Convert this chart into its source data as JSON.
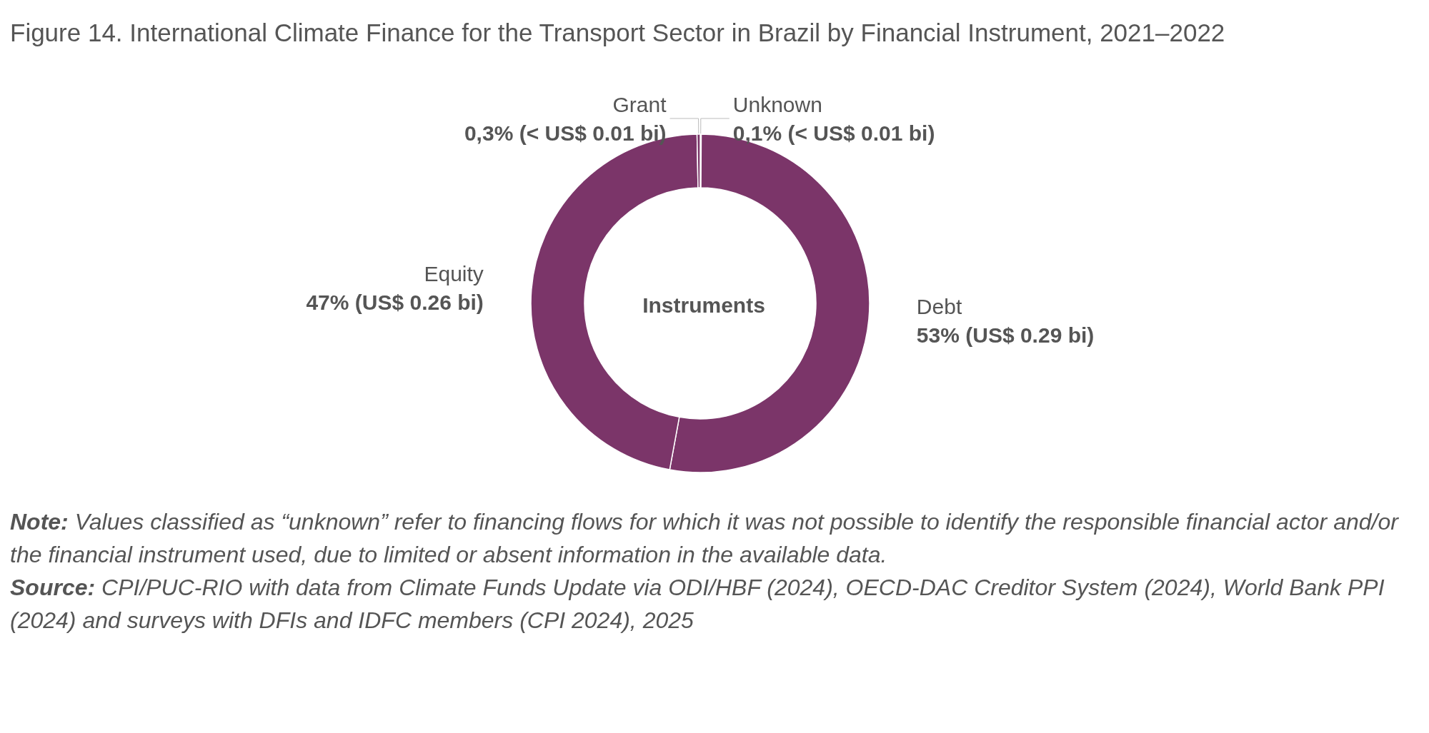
{
  "chart_data": {
    "type": "donut",
    "title": "Figure 14. International Climate Finance for the Transport Sector in Brazil by Financial Instrument, 2021–2022",
    "categories": [
      "Unknown",
      "Debt",
      "Equity",
      "Grant"
    ],
    "values": [
      0.1,
      53,
      47,
      0.3
    ],
    "colors": [
      "#7b3569",
      "#7b3569",
      "#7b3569",
      "#7b3569"
    ],
    "value_labels": [
      "0,1% (< US$ 0.01 bi)",
      "53% (US$ 0.29 bi)",
      "47% (US$ 0.26 bi)",
      "0,3% (< US$ 0.01 bi)"
    ],
    "legend_title": "Instruments",
    "legend": false,
    "annotations": [
      "Note: Values classified as “unknown” refer to financing flows for which it was not possible to identify the responsible financial actor and/or the financial instrument used, due to limited or absent information in the available data.",
      "Source: CPI/PUC-RIO with data from Climate Funds Update via ODI/HBF (2024), OECD-DAC Creditor System (2024), World Bank PPI (2024) and surveys with DFIs and IDFC members (CPI 2024), 2025"
    ]
  }
}
